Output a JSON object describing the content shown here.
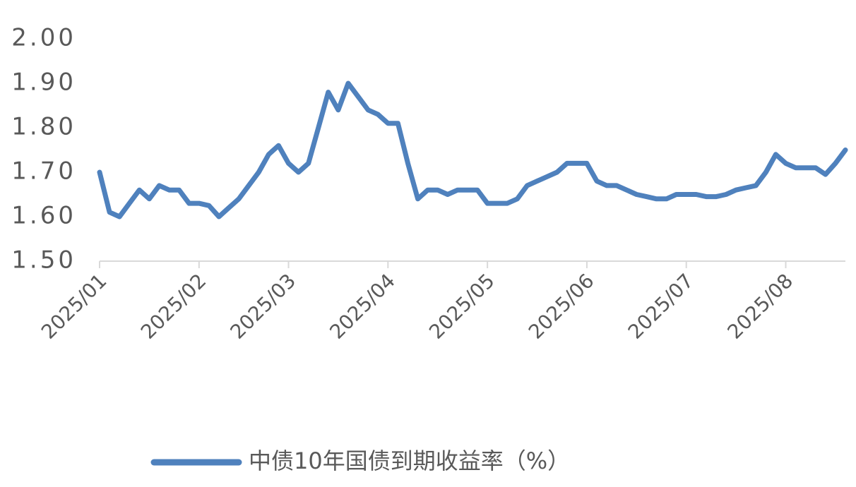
{
  "chart_data": {
    "type": "line",
    "categories": [
      "2025/01",
      null,
      null,
      null,
      null,
      null,
      null,
      null,
      null,
      null,
      "2025/02",
      null,
      null,
      null,
      null,
      null,
      null,
      null,
      null,
      "2025/03",
      null,
      null,
      null,
      null,
      null,
      null,
      null,
      null,
      null,
      "2025/04",
      null,
      null,
      null,
      null,
      null,
      null,
      null,
      null,
      null,
      "2025/05",
      null,
      null,
      null,
      null,
      null,
      null,
      null,
      null,
      null,
      "2025/06",
      null,
      null,
      null,
      null,
      null,
      null,
      null,
      null,
      null,
      "2025/07",
      null,
      null,
      null,
      null,
      null,
      null,
      null,
      null,
      null,
      "2025/08",
      null,
      null,
      null,
      null,
      null,
      null
    ],
    "series": [
      {
        "name": "中债10年国债到期收益率（%）",
        "color": "#4f81bd",
        "values": [
          1.7,
          1.61,
          1.6,
          1.63,
          1.66,
          1.64,
          1.67,
          1.66,
          1.66,
          1.63,
          1.63,
          1.625,
          1.6,
          1.62,
          1.64,
          1.67,
          1.7,
          1.74,
          1.76,
          1.72,
          1.7,
          1.72,
          1.8,
          1.88,
          1.84,
          1.9,
          1.87,
          1.84,
          1.83,
          1.81,
          1.81,
          1.72,
          1.64,
          1.66,
          1.66,
          1.65,
          1.66,
          1.66,
          1.66,
          1.63,
          1.63,
          1.63,
          1.64,
          1.67,
          1.68,
          1.69,
          1.7,
          1.72,
          1.72,
          1.72,
          1.68,
          1.67,
          1.67,
          1.66,
          1.65,
          1.645,
          1.64,
          1.64,
          1.65,
          1.65,
          1.65,
          1.645,
          1.645,
          1.65,
          1.66,
          1.665,
          1.67,
          1.7,
          1.74,
          1.72,
          1.71,
          1.71,
          1.71,
          1.695,
          1.72,
          1.75
        ]
      }
    ],
    "ylim": [
      1.5,
      2.0
    ],
    "yticks": [
      {
        "value": 1.5,
        "label": "1.50"
      },
      {
        "value": 1.6,
        "label": "1.60"
      },
      {
        "value": 1.7,
        "label": "1.70"
      },
      {
        "value": 1.8,
        "label": "1.80"
      },
      {
        "value": 1.9,
        "label": "1.90"
      },
      {
        "value": 2.0,
        "label": "2.00"
      }
    ],
    "grid": false,
    "legend": "bottom"
  }
}
